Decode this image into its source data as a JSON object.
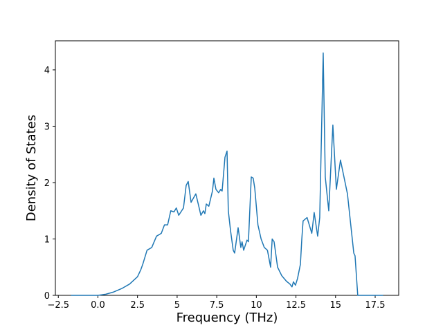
{
  "chart_data": {
    "type": "line",
    "xlabel": "Frequency (THz)",
    "ylabel": "Density of States",
    "xlim": [
      -2.685,
      18.985
    ],
    "ylim": [
      0,
      4.515
    ],
    "xticks": [
      {
        "value": -2.5,
        "label": "−2.5"
      },
      {
        "value": 0,
        "label": "0.0"
      },
      2.5,
      5.0,
      7.5,
      10.0,
      12.5,
      15.0,
      17.5
    ],
    "yticks": [
      0,
      1,
      2,
      3,
      4
    ],
    "grid": false,
    "series": [
      {
        "color": "#1f77b4",
        "x": [
          -1.7,
          0,
          0.5,
          1.0,
          1.5,
          2.0,
          2.5,
          2.7,
          2.83,
          3.1,
          3.4,
          3.7,
          4.0,
          4.2,
          4.4,
          4.6,
          4.8,
          4.95,
          5.1,
          5.4,
          5.57,
          5.7,
          5.88,
          6.18,
          6.35,
          6.5,
          6.66,
          6.75,
          6.84,
          7.0,
          7.23,
          7.32,
          7.45,
          7.62,
          7.75,
          7.84,
          8.02,
          8.15,
          8.23,
          8.37,
          8.54,
          8.63,
          8.85,
          9.02,
          9.1,
          9.2,
          9.41,
          9.5,
          9.68,
          9.8,
          9.9,
          10.1,
          10.3,
          10.5,
          10.7,
          10.9,
          11.0,
          11.12,
          11.34,
          11.6,
          11.9,
          12.12,
          12.25,
          12.34,
          12.47,
          12.6,
          12.78,
          12.87,
          12.95,
          13.2,
          13.5,
          13.65,
          13.87,
          14.0,
          14.22,
          14.35,
          14.57,
          14.83,
          15.05,
          15.31,
          15.75,
          16.15,
          16.23,
          16.4,
          18.0
        ],
        "values": [
          0,
          0,
          0.02,
          0.06,
          0.12,
          0.2,
          0.33,
          0.45,
          0.55,
          0.8,
          0.85,
          1.05,
          1.1,
          1.25,
          1.25,
          1.5,
          1.48,
          1.55,
          1.42,
          1.55,
          1.95,
          2.02,
          1.65,
          1.8,
          1.6,
          1.42,
          1.5,
          1.45,
          1.62,
          1.58,
          1.85,
          2.08,
          1.88,
          1.82,
          1.88,
          1.85,
          2.45,
          2.56,
          1.5,
          1.15,
          0.8,
          0.75,
          1.2,
          0.85,
          0.95,
          0.8,
          0.98,
          0.95,
          2.1,
          2.08,
          1.9,
          1.25,
          1.0,
          0.85,
          0.8,
          0.5,
          1.0,
          0.95,
          0.5,
          0.35,
          0.25,
          0.2,
          0.15,
          0.24,
          0.18,
          0.3,
          0.55,
          1.0,
          1.32,
          1.38,
          1.1,
          1.47,
          1.05,
          1.38,
          4.3,
          2.1,
          1.5,
          3.02,
          1.88,
          2.4,
          1.8,
          0.75,
          0.7,
          0,
          0
        ]
      }
    ]
  }
}
